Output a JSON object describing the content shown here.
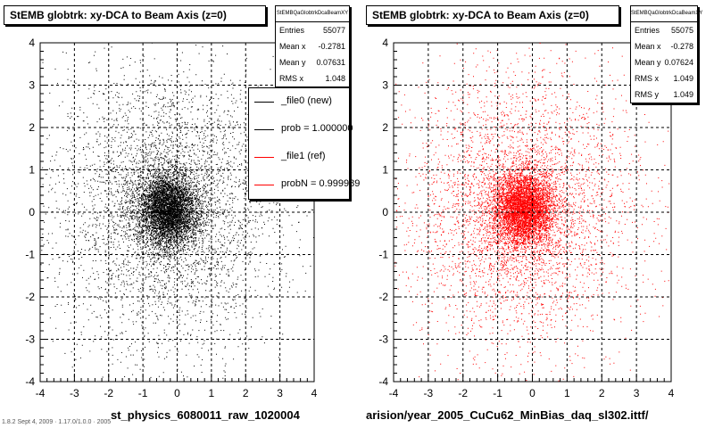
{
  "chart_data": [
    {
      "type": "scatter",
      "title": "StEMB globtrk: xy-DCA to Beam Axis (z=0)",
      "xlim": [
        -4,
        4
      ],
      "ylim": [
        -4,
        4
      ],
      "x_ticks": [
        "-4",
        "-3",
        "-2",
        "-1",
        "0",
        "1",
        "2",
        "3",
        "4"
      ],
      "y_ticks": [
        "-4",
        "-3",
        "-2",
        "-1",
        "0",
        "1",
        "2",
        "3",
        "4"
      ],
      "grid": true,
      "color": "#000000",
      "distribution": {
        "center_x": -0.2781,
        "center_y": 0.07631,
        "rms_x": 1.048,
        "entries": 55077
      },
      "stats": {
        "name": "StEMBQaGlobtrkDcaBeamXY",
        "rows": [
          {
            "label": "Entries",
            "value": "55077"
          },
          {
            "label": "Mean x",
            "value": "-0.2781"
          },
          {
            "label": "Mean y",
            "value": "0.07631"
          },
          {
            "label": "RMS x",
            "value": "1.048"
          }
        ]
      },
      "legend": [
        {
          "label": "_file0 (new)",
          "color": "#000000"
        },
        {
          "label": "prob = 1.000000",
          "color": "#000000"
        },
        {
          "label": "_file1 (ref)",
          "color": "#ff0000"
        },
        {
          "label": "probN = 0.999989",
          "color": "#ff0000"
        }
      ],
      "footer": "st_physics_6080011_raw_1020004"
    },
    {
      "type": "scatter",
      "title": "StEMB globtrk: xy-DCA to Beam Axis (z=0)",
      "xlim": [
        -4,
        4
      ],
      "ylim": [
        -4,
        4
      ],
      "x_ticks": [
        "-4",
        "-3",
        "-2",
        "-1",
        "0",
        "1",
        "2",
        "3",
        "4"
      ],
      "y_ticks": [
        "-4",
        "-3",
        "-2",
        "-1",
        "0",
        "1",
        "2",
        "3",
        "4"
      ],
      "grid": true,
      "color": "#ff0000",
      "distribution": {
        "center_x": -0.278,
        "center_y": 0.07624,
        "rms_x": 1.049,
        "rms_y": 1.049,
        "entries": 55075
      },
      "stats": {
        "name": "StEMBQaGlobtrkDcaBeamXY",
        "rows": [
          {
            "label": "Entries",
            "value": "55075"
          },
          {
            "label": "Mean x",
            "value": "-0.278"
          },
          {
            "label": "Mean y",
            "value": "0.07624"
          },
          {
            "label": "RMS x",
            "value": "1.049"
          },
          {
            "label": "RMS y",
            "value": "1.049"
          }
        ]
      },
      "footer": "arision/year_2005_CuCu62_MinBias_daq_sl302.ittf/"
    }
  ],
  "corner_text": "1.8.2 Sept 4, 2009 · 1.17.0/1.0.0 · 2005"
}
